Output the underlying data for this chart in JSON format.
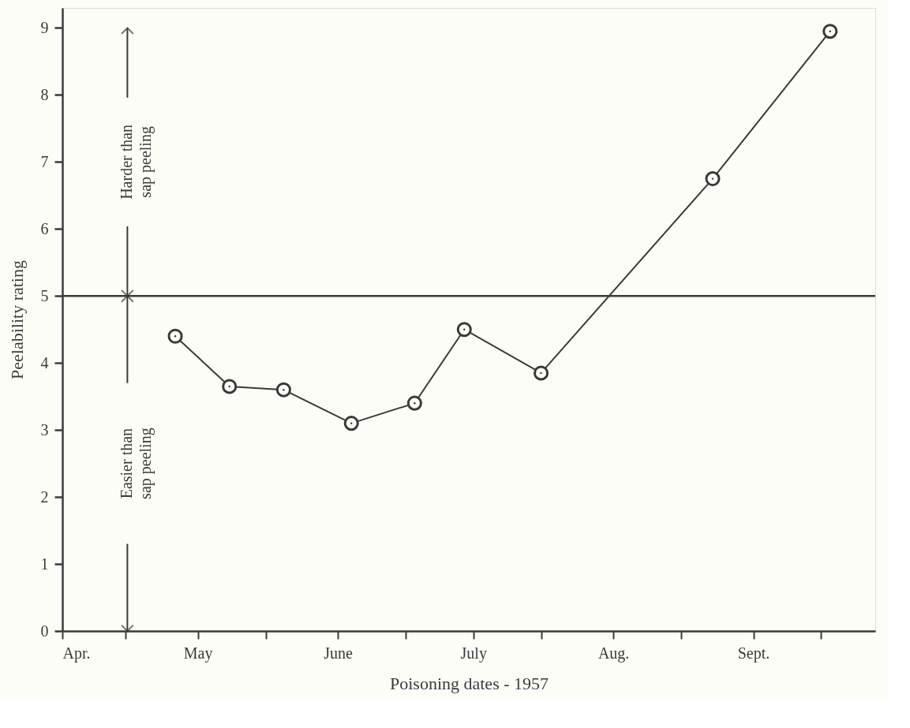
{
  "chart_data": {
    "type": "line",
    "xlabel": "Poisoning dates - 1957",
    "ylabel": "Peelability rating",
    "x": [
      "1957-04-26",
      "1957-05-08",
      "1957-05-20",
      "1957-06-04",
      "1957-06-18",
      "1957-06-29",
      "1957-07-16",
      "1957-08-23",
      "1957-09-18"
    ],
    "series": [
      {
        "color": "#3a3a3a",
        "values": [
          4.4,
          3.65,
          3.6,
          3.1,
          3.4,
          4.5,
          3.85,
          6.75,
          8.95
        ]
      }
    ],
    "xlim": [
      "1957-04-01",
      "1957-09-28"
    ],
    "xticks": [
      {
        "value": "1957-04-01",
        "label": "Apr."
      },
      {
        "value": "1957-04-15",
        "label": null
      },
      {
        "value": "1957-05-01",
        "label": "May"
      },
      {
        "value": "1957-05-16",
        "label": null
      },
      {
        "value": "1957-06-01",
        "label": "June"
      },
      {
        "value": "1957-06-16",
        "label": null
      },
      {
        "value": "1957-07-01",
        "label": "July"
      },
      {
        "value": "1957-07-16",
        "label": null
      },
      {
        "value": "1957-08-01",
        "label": "Aug."
      },
      {
        "value": "1957-08-16",
        "label": null
      },
      {
        "value": "1957-09-01",
        "label": "Sept."
      },
      {
        "value": "1957-09-16",
        "label": null
      }
    ],
    "ylim": [
      0,
      9.3
    ],
    "yticks": [
      0,
      1,
      2,
      3,
      4,
      5,
      6,
      7,
      8,
      9
    ],
    "ref_lines": [
      {
        "axis": "y",
        "value": 5,
        "label": null,
        "color": "#3a3a3a"
      }
    ],
    "annotations": [
      "Harder than\nsap peeling",
      "Easier than\nsap peeling"
    ],
    "marker": "circle",
    "line_style": "solid",
    "grid": false
  }
}
